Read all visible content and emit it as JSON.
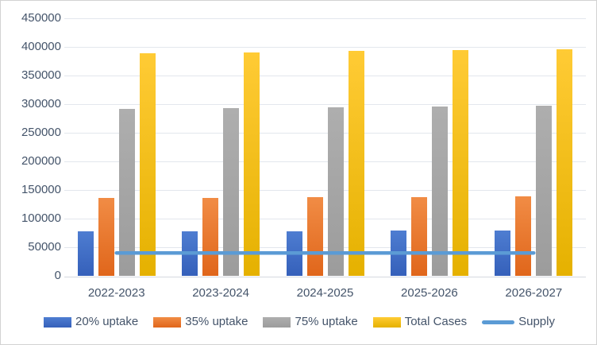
{
  "chart_data": {
    "type": "combo",
    "title": "",
    "xlabel": "",
    "ylabel": "",
    "categories": [
      "2022-2023",
      "2023-2024",
      "2024-2025",
      "2025-2026",
      "2026-2027"
    ],
    "series": [
      {
        "name": "20% uptake",
        "type": "bar",
        "values": [
          77800,
          78160,
          78520,
          78880,
          79240
        ],
        "legend_color": "#4472C4",
        "gradient_top": "#4E7DD1",
        "gradient_bottom": "#3560BA"
      },
      {
        "name": "35% uptake",
        "type": "bar",
        "values": [
          136150,
          136780,
          137410,
          138040,
          138670
        ],
        "legend_color": "#ED7D31",
        "gradient_top": "#F18C45",
        "gradient_bottom": "#E0661B"
      },
      {
        "name": "75% uptake",
        "type": "bar",
        "values": [
          291750,
          293100,
          294450,
          295800,
          297150
        ],
        "legend_color": "#A5A5A5",
        "gradient_top": "#AEAEAE",
        "gradient_bottom": "#9C9C9C"
      },
      {
        "name": "Total Cases",
        "type": "bar",
        "values": [
          389000,
          390800,
          392600,
          394400,
          396200
        ],
        "legend_color": "#FFC000",
        "gradient_top": "#FFCB35",
        "gradient_bottom": "#E5B100"
      },
      {
        "name": "Supply",
        "type": "line",
        "values": [
          40000,
          40000,
          40000,
          40000,
          40000
        ],
        "legend_color": "#5B9BD5"
      }
    ],
    "y_axis": {
      "min": 0,
      "max": 450000,
      "step": 50000,
      "tick_labels": [
        "0",
        "50000",
        "100000",
        "150000",
        "200000",
        "250000",
        "300000",
        "350000",
        "400000",
        "450000"
      ]
    },
    "legend_position": "bottom",
    "grid": true,
    "palette": {
      "axis_text": "#44546A",
      "gridline": "#E3E7ED",
      "axis_line": "#D5D9DF",
      "border": "#D2D2D2",
      "background": "#FFFFFF"
    }
  }
}
